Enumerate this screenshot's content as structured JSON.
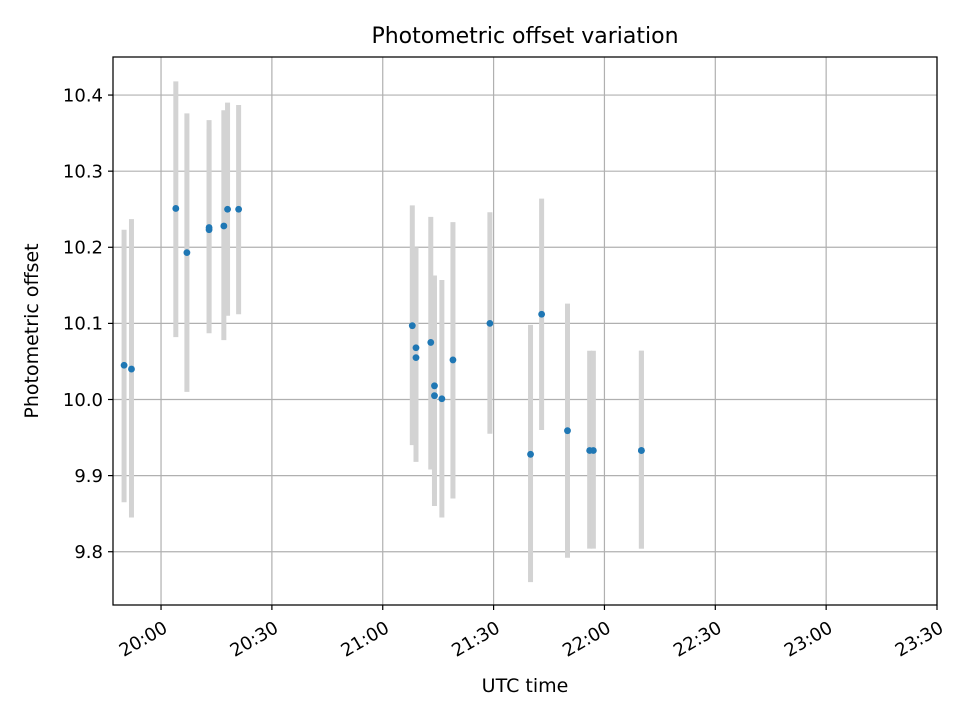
{
  "chart_data": {
    "type": "scatter",
    "title": "Photometric offset variation",
    "xlabel": "UTC time",
    "ylabel": "Photometric offset",
    "x_tick_labels": [
      "20:00",
      "20:30",
      "21:00",
      "21:30",
      "22:00",
      "22:30",
      "23:00",
      "23:30"
    ],
    "y_tick_labels": [
      "9.8",
      "9.9",
      "10.0",
      "10.1",
      "10.2",
      "10.3",
      "10.4"
    ],
    "x_ticks": [
      "20:00",
      "20:30",
      "21:00",
      "21:30",
      "22:00",
      "22:30",
      "23:00",
      "23:30"
    ],
    "y_ticks": [
      9.8,
      9.9,
      10.0,
      10.1,
      10.2,
      10.3,
      10.4
    ],
    "xlim": [
      "19:47",
      "23:30"
    ],
    "ylim": [
      9.73,
      10.45
    ],
    "grid": true,
    "colors": {
      "points": "#1f77b4",
      "error_bars": "#d3d3d3",
      "grid": "#b0b0b0"
    },
    "points": [
      {
        "x": "19:50",
        "y": 10.045,
        "err_low": 9.865,
        "err_high": 10.223
      },
      {
        "x": "19:52",
        "y": 10.04,
        "err_low": 9.845,
        "err_high": 10.237
      },
      {
        "x": "20:04",
        "y": 10.251,
        "err_low": 10.082,
        "err_high": 10.418
      },
      {
        "x": "20:07",
        "y": 10.193,
        "err_low": 10.01,
        "err_high": 10.376
      },
      {
        "x": "20:13",
        "y": 10.223,
        "err_low": 10.1,
        "err_high": 10.355
      },
      {
        "x": "20:13",
        "y": 10.226,
        "err_low": 10.087,
        "err_high": 10.367
      },
      {
        "x": "20:17",
        "y": 10.228,
        "err_low": 10.078,
        "err_high": 10.38
      },
      {
        "x": "20:18",
        "y": 10.25,
        "err_low": 10.11,
        "err_high": 10.39
      },
      {
        "x": "20:21",
        "y": 10.25,
        "err_low": 10.112,
        "err_high": 10.387
      },
      {
        "x": "21:08",
        "y": 10.097,
        "err_low": 9.94,
        "err_high": 10.255
      },
      {
        "x": "21:09",
        "y": 10.068,
        "err_low": 9.945,
        "err_high": 10.2
      },
      {
        "x": "21:09",
        "y": 10.055,
        "err_low": 9.918,
        "err_high": 10.193
      },
      {
        "x": "21:13",
        "y": 10.075,
        "err_low": 9.908,
        "err_high": 10.24
      },
      {
        "x": "21:14",
        "y": 10.018,
        "err_low": 9.875,
        "err_high": 10.163
      },
      {
        "x": "21:14",
        "y": 10.005,
        "err_low": 9.86,
        "err_high": 10.148
      },
      {
        "x": "21:16",
        "y": 10.001,
        "err_low": 9.845,
        "err_high": 10.157
      },
      {
        "x": "21:19",
        "y": 10.052,
        "err_low": 9.87,
        "err_high": 10.233
      },
      {
        "x": "21:29",
        "y": 10.1,
        "err_low": 9.955,
        "err_high": 10.246
      },
      {
        "x": "21:40",
        "y": 9.928,
        "err_low": 9.76,
        "err_high": 10.098
      },
      {
        "x": "21:43",
        "y": 10.112,
        "err_low": 9.96,
        "err_high": 10.264
      },
      {
        "x": "21:50",
        "y": 9.959,
        "err_low": 9.792,
        "err_high": 10.126
      },
      {
        "x": "21:56",
        "y": 9.933,
        "err_low": 9.804,
        "err_high": 10.064
      },
      {
        "x": "21:57",
        "y": 9.933,
        "err_low": 9.804,
        "err_high": 10.064
      },
      {
        "x": "22:10",
        "y": 9.933,
        "err_low": 9.804,
        "err_high": 10.064
      },
      {
        "x": "22:10",
        "y": 9.933,
        "err_low": 9.804,
        "err_high": 10.064
      }
    ]
  }
}
